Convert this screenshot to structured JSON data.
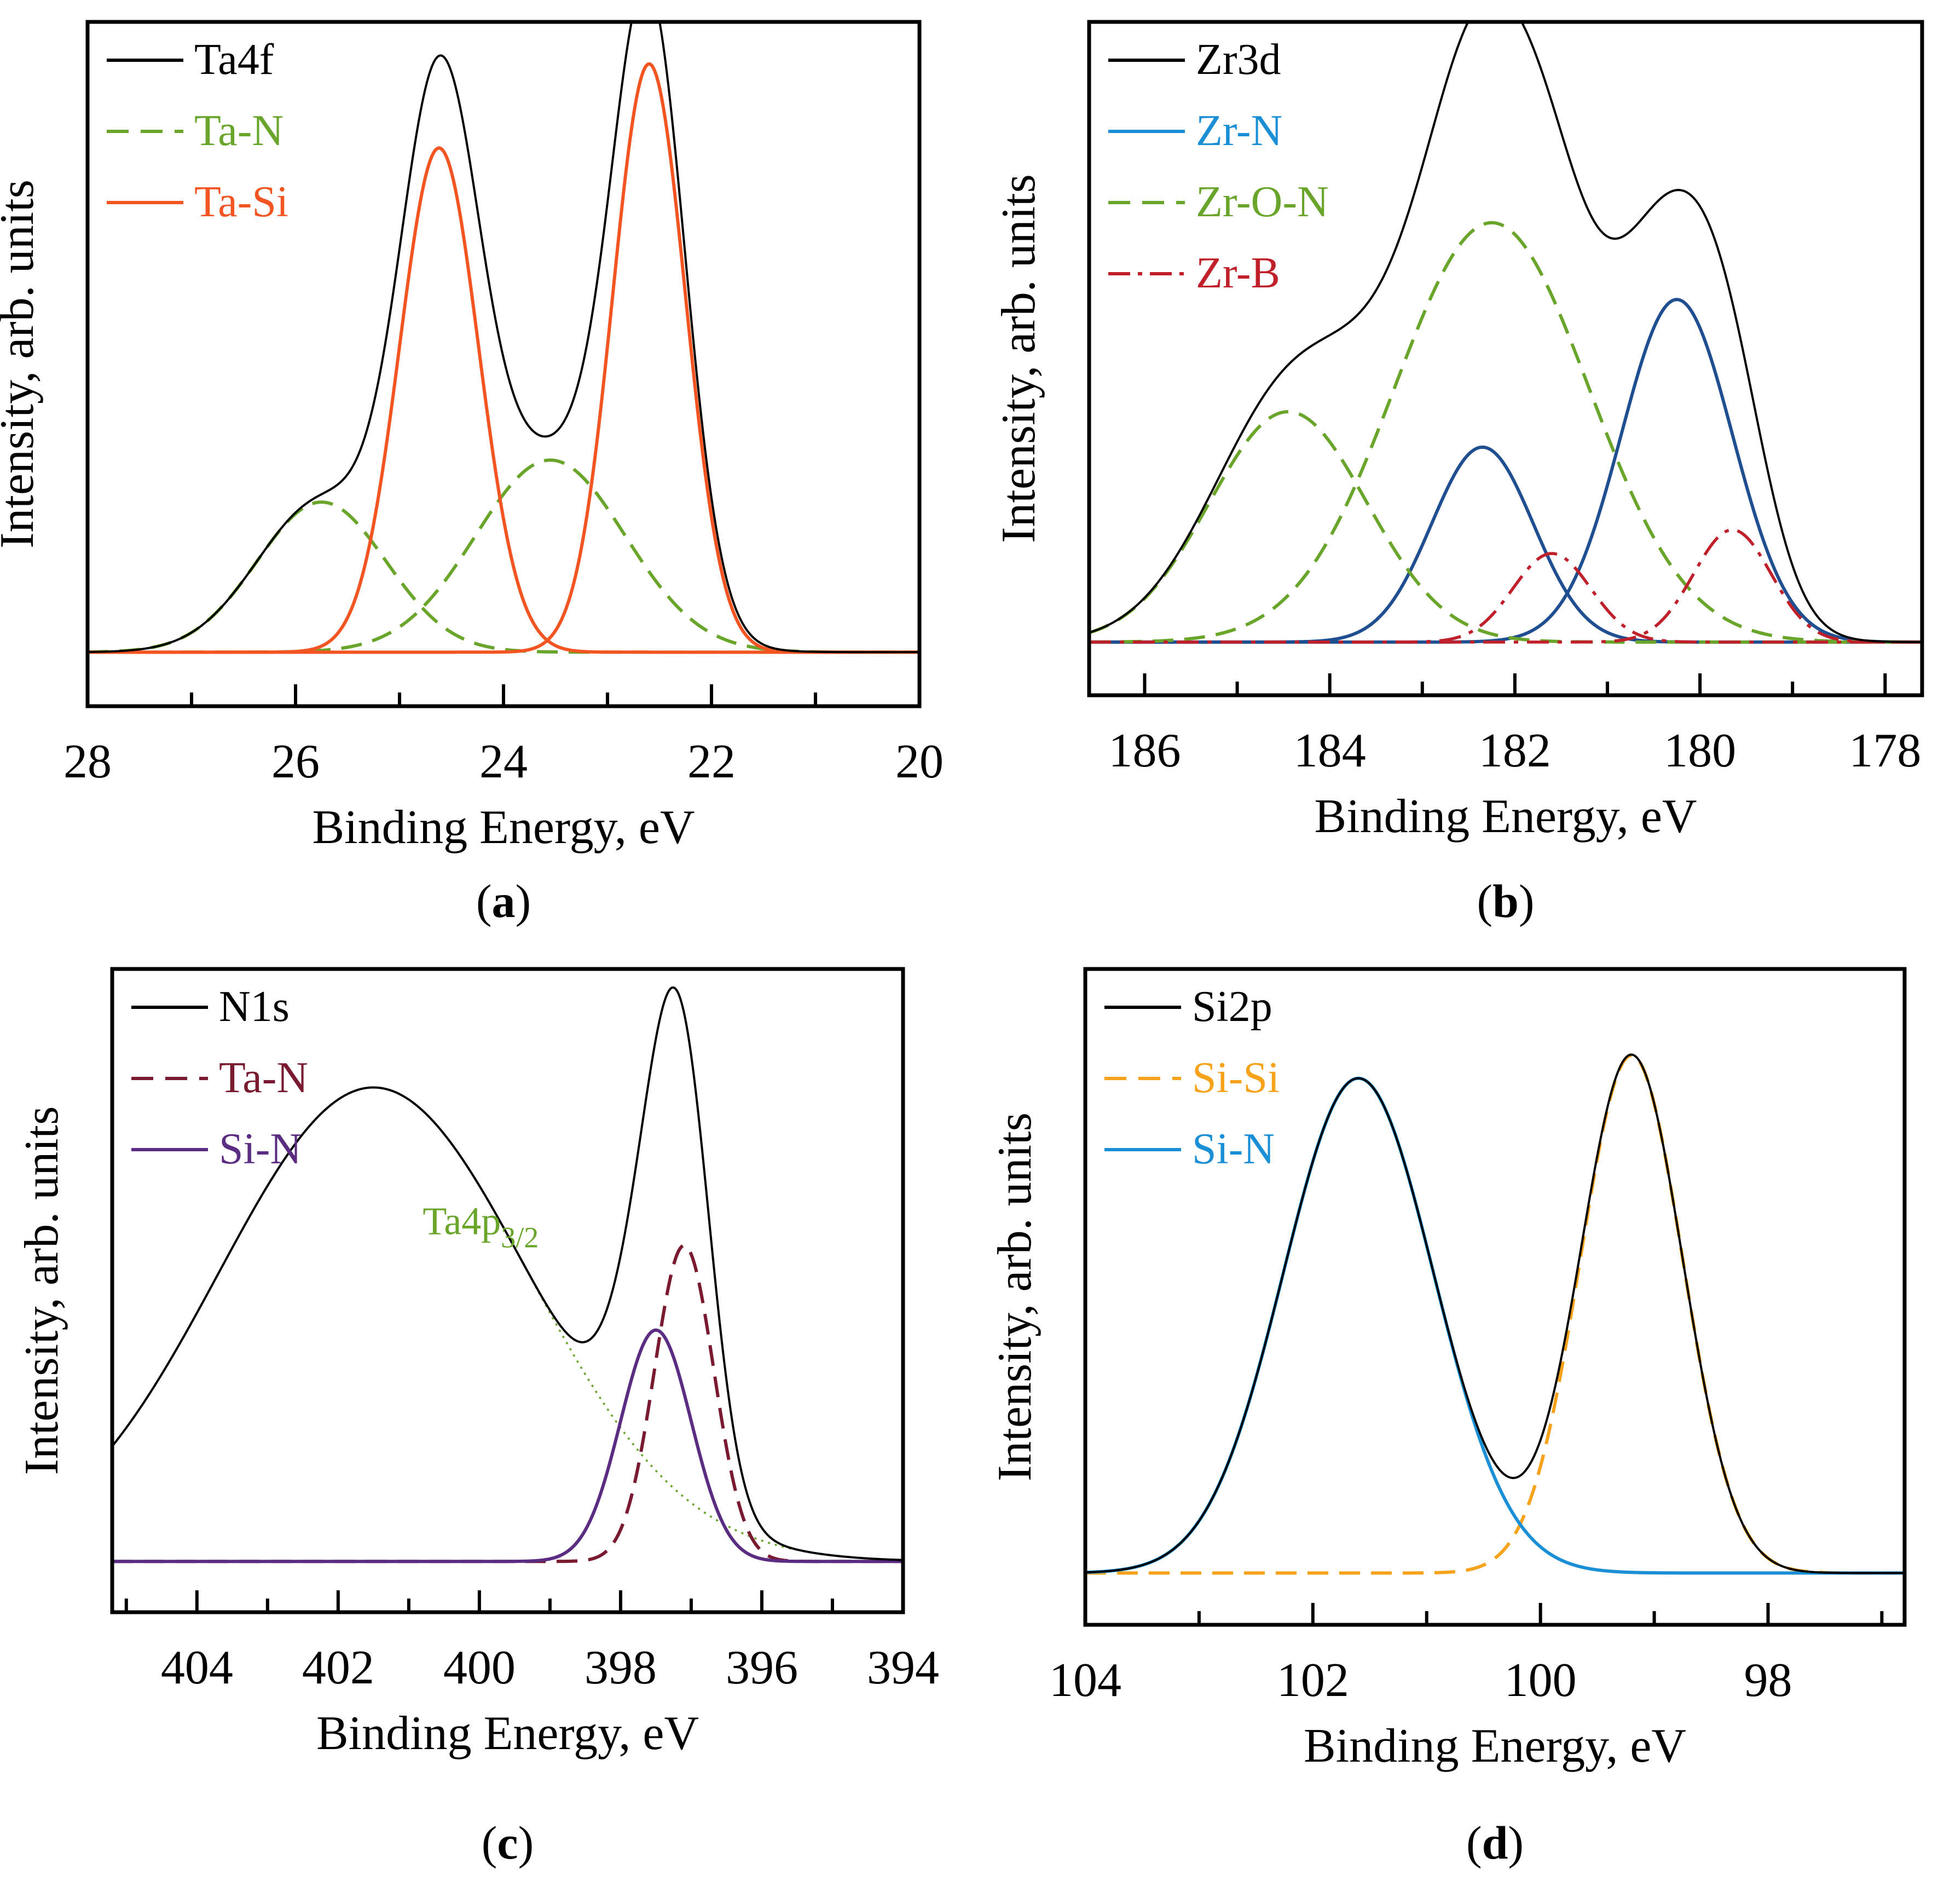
{
  "figure": {
    "panel_labels": [
      "(a)",
      "(b)",
      "(c)",
      "(d)"
    ],
    "panel_letters": [
      "a",
      "b",
      "c",
      "d"
    ]
  },
  "chart_data": [
    {
      "type": "line",
      "id": "a",
      "caption": "(a)",
      "title": "",
      "xlabel": "Binding Energy, eV",
      "ylabel": "Intensity, arb. units",
      "xlim": [
        28,
        20
      ],
      "ylim": [
        -0.09,
        1.05
      ],
      "xticks": [
        28,
        26,
        24,
        22,
        20
      ],
      "xtick_labels": [
        "28",
        "26",
        "24",
        "22",
        "20"
      ],
      "xminor": [
        27,
        25,
        23,
        21
      ],
      "legend_position": "top-left",
      "x_range": [
        28,
        20
      ],
      "series": [
        {
          "name": "Ta4f",
          "color": "#000000",
          "style": "solid",
          "kind": "sum"
        },
        {
          "name": "Ta-N",
          "color": "#6aa52b",
          "style": "dashed",
          "kind": "peaks",
          "peaks": [
            {
              "center": 25.75,
              "height": 0.25,
              "sigma": 0.62
            },
            {
              "center": 23.55,
              "height": 0.32,
              "sigma": 0.72
            }
          ]
        },
        {
          "name": "Ta-Si",
          "color": "#f25522",
          "style": "solid",
          "kind": "peaks",
          "peaks": [
            {
              "center": 24.62,
              "height": 0.84,
              "sigma": 0.38
            },
            {
              "center": 22.6,
              "height": 0.98,
              "sigma": 0.35
            }
          ]
        }
      ]
    },
    {
      "type": "line",
      "id": "b",
      "caption": "(b)",
      "title": "",
      "xlabel": "Binding Energy, eV",
      "ylabel": "Intensity, arb. units",
      "xlim": [
        186.6,
        177.6
      ],
      "ylim": [
        -0.09,
        1.05
      ],
      "xticks": [
        186,
        184,
        182,
        180,
        178
      ],
      "xtick_labels": [
        "186",
        "184",
        "182",
        "180",
        "178"
      ],
      "xminor": [
        185,
        183,
        181,
        179
      ],
      "legend_position": "top-left",
      "x_range": [
        186.6,
        177.6
      ],
      "series": [
        {
          "name": "Zr3d",
          "color": "#000000",
          "style": "solid",
          "kind": "sum"
        },
        {
          "name": "Zr-N",
          "color": "#1a8fd6",
          "style": "solid",
          "kind": "peaks",
          "draw_color": "#1f4f91",
          "peaks": [
            {
              "center": 182.35,
              "height": 0.33,
              "sigma": 0.55
            },
            {
              "center": 180.25,
              "height": 0.58,
              "sigma": 0.6
            }
          ]
        },
        {
          "name": "Zr-O-N",
          "color": "#6aa52b",
          "style": "dashed",
          "kind": "peaks",
          "peaks": [
            {
              "center": 184.45,
              "height": 0.39,
              "sigma": 0.85
            },
            {
              "center": 182.25,
              "height": 0.71,
              "sigma": 1.05
            }
          ]
        },
        {
          "name": "Zr-B",
          "color": "#c0202a",
          "style": "dashdot",
          "kind": "peaks",
          "peaks": [
            {
              "center": 181.6,
              "height": 0.15,
              "sigma": 0.42
            },
            {
              "center": 179.65,
              "height": 0.19,
              "sigma": 0.42
            }
          ]
        }
      ]
    },
    {
      "type": "line",
      "id": "c",
      "caption": "(c)",
      "title": "",
      "xlabel": "Binding Energy, eV",
      "ylabel": "Intensity, arb. units",
      "xlim": [
        405.2,
        394
      ],
      "ylim": [
        -0.09,
        1.05
      ],
      "xticks": [
        404,
        402,
        400,
        398,
        396,
        394
      ],
      "xtick_labels": [
        "404",
        "402",
        "400",
        "398",
        "396",
        "394"
      ],
      "xminor": [
        405,
        403,
        401,
        399,
        397,
        395
      ],
      "legend_position": "top-left",
      "annotation": {
        "base": "Ta4p",
        "sub": "3/2",
        "color": "#6aa52b"
      },
      "x_range": [
        405.2,
        394
      ],
      "series": [
        {
          "name": "N1s",
          "color": "#000000",
          "style": "solid",
          "kind": "sum"
        },
        {
          "name": "Ta-N",
          "color": "#7a1a30",
          "style": "dashed",
          "kind": "peaks",
          "peaks": [
            {
              "center": 397.1,
              "height": 0.56,
              "sigma": 0.42
            }
          ]
        },
        {
          "name": "Si-N",
          "color": "#5a2d82",
          "style": "solid",
          "kind": "peaks",
          "peaks": [
            {
              "center": 397.5,
              "height": 0.41,
              "sigma": 0.5
            }
          ]
        },
        {
          "name": "Ta4p3/2",
          "color": "#6aa52b",
          "style": "dotted",
          "kind": "background_peak",
          "peaks": [
            {
              "center": 401.5,
              "height": 0.84,
              "sigma": 2.2
            }
          ]
        }
      ]
    },
    {
      "type": "line",
      "id": "d",
      "caption": "(d)",
      "title": "",
      "xlabel": "Binding Energy, eV",
      "ylabel": "Intensity, arb. units",
      "xlim": [
        104,
        96.8
      ],
      "ylim": [
        -0.09,
        1.05
      ],
      "xticks": [
        104,
        102,
        100,
        98
      ],
      "xtick_labels": [
        "104",
        "102",
        "100",
        "98"
      ],
      "xminor": [
        103,
        101,
        99,
        97
      ],
      "legend_position": "top-left",
      "x_range": [
        104,
        96.8
      ],
      "series": [
        {
          "name": "Si2p",
          "color": "#000000",
          "style": "solid",
          "kind": "sum"
        },
        {
          "name": "Si-Si",
          "color": "#f7a21b",
          "style": "dashed",
          "kind": "peaks",
          "peaks": [
            {
              "center": 99.2,
              "height": 0.9,
              "sigma": 0.45
            }
          ]
        },
        {
          "name": "Si-N",
          "color": "#1a8fd6",
          "style": "solid",
          "kind": "peaks",
          "peaks": [
            {
              "center": 101.6,
              "height": 0.86,
              "sigma": 0.66
            }
          ]
        }
      ]
    }
  ]
}
